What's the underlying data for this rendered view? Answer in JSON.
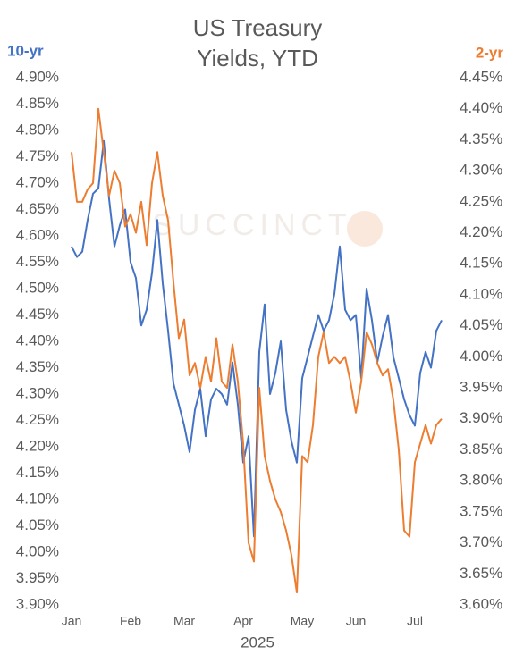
{
  "chart_data": {
    "type": "line",
    "title": "US Treasury Yields, YTD",
    "watermark": "SUCCINCT",
    "x_label": "2025",
    "y_label": "10-yr",
    "y2_label": "2-yr",
    "categories": [
      "Jan",
      null,
      null,
      null,
      null,
      null,
      null,
      null,
      null,
      null,
      null,
      "Feb",
      null,
      null,
      null,
      null,
      null,
      null,
      null,
      null,
      null,
      "Mar",
      null,
      null,
      null,
      null,
      null,
      null,
      null,
      null,
      null,
      null,
      "Apr",
      null,
      null,
      null,
      null,
      null,
      null,
      null,
      null,
      null,
      null,
      "May",
      null,
      null,
      null,
      null,
      null,
      null,
      null,
      null,
      null,
      "Jun",
      null,
      null,
      null,
      null,
      null,
      null,
      null,
      null,
      null,
      null,
      "Jul",
      null,
      null,
      null,
      null,
      null
    ],
    "series": [
      {
        "name": "10-yr",
        "color": "#4472c4",
        "axis": "y",
        "values": [
          4.58,
          4.56,
          4.57,
          4.63,
          4.68,
          4.69,
          4.78,
          4.67,
          4.58,
          4.62,
          4.65,
          4.55,
          4.52,
          4.43,
          4.46,
          4.53,
          4.63,
          4.51,
          4.42,
          4.32,
          4.28,
          4.24,
          4.19,
          4.27,
          4.31,
          4.22,
          4.29,
          4.31,
          4.3,
          4.28,
          4.36,
          4.28,
          4.17,
          4.22,
          4.03,
          4.38,
          4.47,
          4.3,
          4.34,
          4.4,
          4.27,
          4.21,
          4.17,
          4.33,
          4.37,
          4.41,
          4.45,
          4.42,
          4.44,
          4.49,
          4.58,
          4.46,
          4.44,
          4.45,
          4.33,
          4.5,
          4.44,
          4.36,
          4.41,
          4.45,
          4.37,
          4.33,
          4.29,
          4.26,
          4.24,
          4.34,
          4.38,
          4.35,
          4.42,
          4.44
        ]
      },
      {
        "name": "2-yr",
        "color": "#ed7d31",
        "axis": "y2",
        "values": [
          4.33,
          4.25,
          4.25,
          4.27,
          4.28,
          4.4,
          4.33,
          4.26,
          4.3,
          4.28,
          4.21,
          4.23,
          4.2,
          4.25,
          4.18,
          4.28,
          4.33,
          4.26,
          4.22,
          4.12,
          4.03,
          4.06,
          3.97,
          3.99,
          3.95,
          4.0,
          3.96,
          4.03,
          3.96,
          3.95,
          4.02,
          3.96,
          3.86,
          3.7,
          3.67,
          3.95,
          3.84,
          3.8,
          3.77,
          3.75,
          3.72,
          3.68,
          3.62,
          3.84,
          3.83,
          3.89,
          4.0,
          4.04,
          3.99,
          4.0,
          3.99,
          4.0,
          3.96,
          3.91,
          3.96,
          4.04,
          4.02,
          3.99,
          3.97,
          3.98,
          3.93,
          3.85,
          3.72,
          3.71,
          3.83,
          3.86,
          3.89,
          3.86,
          3.89,
          3.9
        ]
      }
    ],
    "ylim": [
      3.9,
      4.9
    ],
    "yticks": [
      {
        "value": 3.9,
        "label": "3.90%"
      },
      {
        "value": 3.95,
        "label": "3.95%"
      },
      {
        "value": 4.0,
        "label": "4.00%"
      },
      {
        "value": 4.05,
        "label": "4.05%"
      },
      {
        "value": 4.1,
        "label": "4.10%"
      },
      {
        "value": 4.15,
        "label": "4.15%"
      },
      {
        "value": 4.2,
        "label": "4.20%"
      },
      {
        "value": 4.25,
        "label": "4.25%"
      },
      {
        "value": 4.3,
        "label": "4.30%"
      },
      {
        "value": 4.35,
        "label": "4.35%"
      },
      {
        "value": 4.4,
        "label": "4.40%"
      },
      {
        "value": 4.45,
        "label": "4.45%"
      },
      {
        "value": 4.5,
        "label": "4.50%"
      },
      {
        "value": 4.55,
        "label": "4.55%"
      },
      {
        "value": 4.6,
        "label": "4.60%"
      },
      {
        "value": 4.65,
        "label": "4.65%"
      },
      {
        "value": 4.7,
        "label": "4.70%"
      },
      {
        "value": 4.75,
        "label": "4.75%"
      },
      {
        "value": 4.8,
        "label": "4.80%"
      },
      {
        "value": 4.85,
        "label": "4.85%"
      },
      {
        "value": 4.9,
        "label": "4.90%"
      }
    ],
    "y2lim": [
      3.6,
      4.45
    ],
    "y2ticks": [
      {
        "value": 3.6,
        "label": "3.60%"
      },
      {
        "value": 3.65,
        "label": "3.65%"
      },
      {
        "value": 3.7,
        "label": "3.70%"
      },
      {
        "value": 3.75,
        "label": "3.75%"
      },
      {
        "value": 3.8,
        "label": "3.80%"
      },
      {
        "value": 3.85,
        "label": "3.85%"
      },
      {
        "value": 3.9,
        "label": "3.90%"
      },
      {
        "value": 3.95,
        "label": "3.95%"
      },
      {
        "value": 4.0,
        "label": "4.00%"
      },
      {
        "value": 4.05,
        "label": "4.05%"
      },
      {
        "value": 4.1,
        "label": "4.10%"
      },
      {
        "value": 4.15,
        "label": "4.15%"
      },
      {
        "value": 4.2,
        "label": "4.20%"
      },
      {
        "value": 4.25,
        "label": "4.25%"
      },
      {
        "value": 4.3,
        "label": "4.30%"
      },
      {
        "value": 4.35,
        "label": "4.35%"
      },
      {
        "value": 4.4,
        "label": "4.40%"
      },
      {
        "value": 4.45,
        "label": "4.45%"
      }
    ],
    "grid": false
  }
}
